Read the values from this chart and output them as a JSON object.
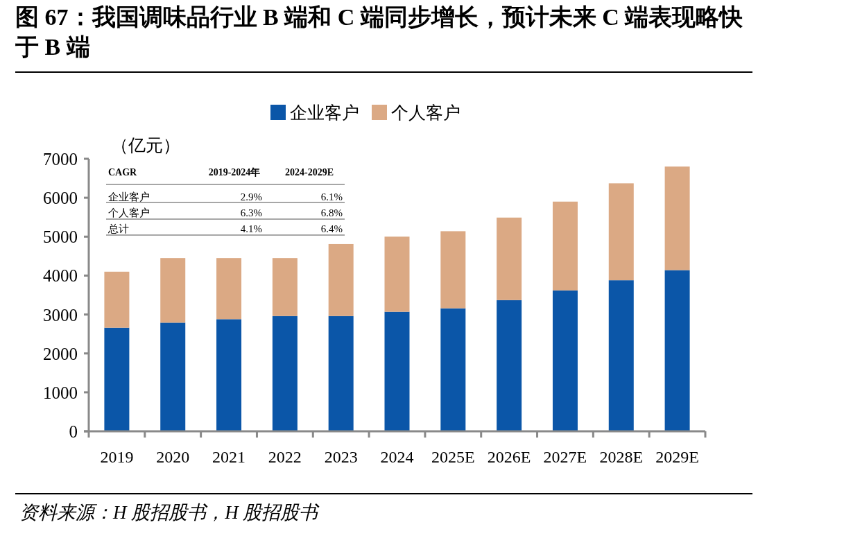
{
  "chart_data": {
    "type": "bar",
    "stacked": true,
    "title": "图 67：我国调味品行业 B 端和 C 端同步增长，预计未来 C 端表现略快于 B 端",
    "ylabel": "（亿元）",
    "categories": [
      "2019",
      "2020",
      "2021",
      "2022",
      "2023",
      "2024",
      "2025E",
      "2026E",
      "2027E",
      "2028E",
      "2029E"
    ],
    "series": [
      {
        "name": "企业客户",
        "color": "#0b56a8",
        "values": [
          2660,
          2790,
          2880,
          2960,
          2960,
          3070,
          3160,
          3370,
          3620,
          3880,
          4140
        ]
      },
      {
        "name": "个人客户",
        "color": "#dba984",
        "values": [
          1440,
          1660,
          1570,
          1490,
          1850,
          1930,
          1980,
          2120,
          2280,
          2490,
          2660
        ]
      }
    ],
    "ylim": [
      0,
      7000
    ],
    "yticks": [
      0,
      1000,
      2000,
      3000,
      4000,
      5000,
      6000,
      7000
    ],
    "grid": false,
    "legend": "top",
    "annotations": [
      "CAGR",
      "2019-2024年",
      "2024-2029E",
      "企业客户",
      "2.9%",
      "6.1%",
      "个人客户",
      "6.3%",
      "6.8%",
      "总计",
      "4.1%",
      "6.4%",
      "资料来源：H 股招股书，H 股招股书"
    ]
  }
}
